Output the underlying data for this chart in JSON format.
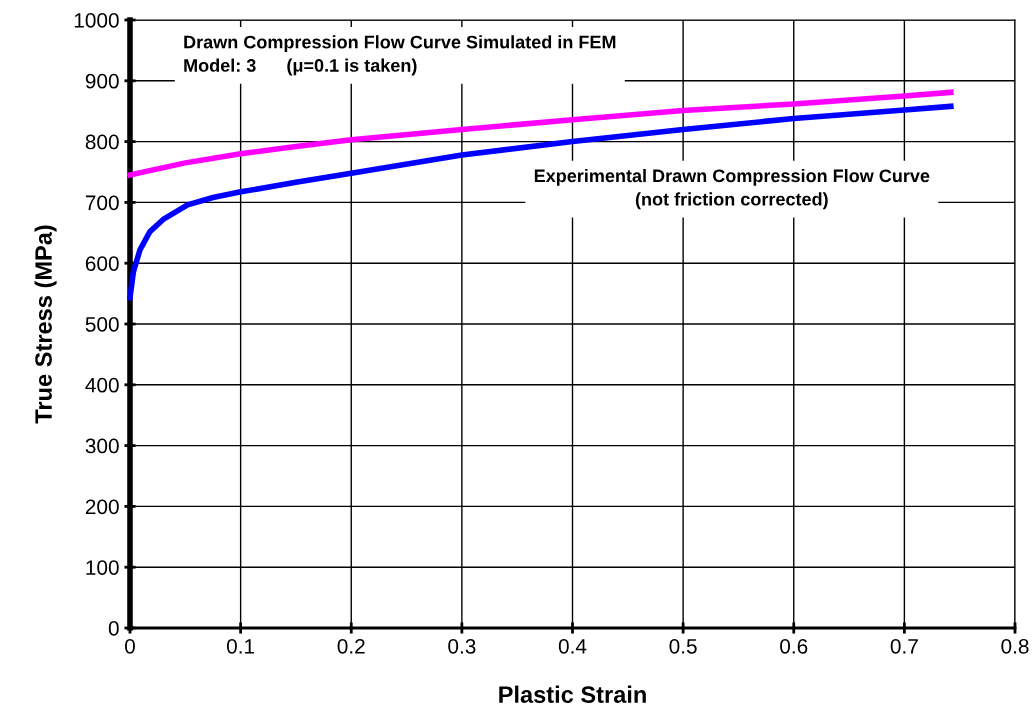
{
  "chart_data": {
    "type": "line",
    "xlabel": "Plastic Strain",
    "ylabel": "True Stress (MPa)",
    "xlim": [
      0,
      0.8
    ],
    "xticks": [
      0,
      0.1,
      0.2,
      0.3,
      0.4,
      0.5,
      0.6,
      0.7,
      0.8
    ],
    "ylim": [
      0,
      1000
    ],
    "yticks": [
      0,
      100,
      200,
      300,
      400,
      500,
      600,
      700,
      800,
      900,
      1000
    ],
    "grid": true,
    "legend": false,
    "marker": "none",
    "line_style": "solid",
    "series": [
      {
        "color": "#ff00ff",
        "x": [
          0,
          0.05,
          0.1,
          0.15,
          0.2,
          0.3,
          0.4,
          0.5,
          0.6,
          0.7,
          0.742
        ],
        "values": [
          745,
          765,
          780,
          792,
          803,
          820,
          836,
          851,
          862,
          875,
          881
        ]
      },
      {
        "color": "#0000ff",
        "x": [
          0,
          0.003,
          0.009,
          0.018,
          0.03,
          0.052,
          0.075,
          0.099,
          0.15,
          0.2,
          0.3,
          0.4,
          0.5,
          0.6,
          0.7,
          0.742
        ],
        "values": [
          543,
          585,
          622,
          652,
          672,
          696,
          708,
          717,
          733,
          748,
          778,
          800,
          820,
          838,
          852,
          858
        ]
      }
    ],
    "annotations": [
      "Drawn Compression Flow Curve Simulated in FEM\nModel: 3      (μ=0.1 is taken)",
      "Experimental Drawn Compression Flow Curve\n(not friction corrected)"
    ]
  }
}
